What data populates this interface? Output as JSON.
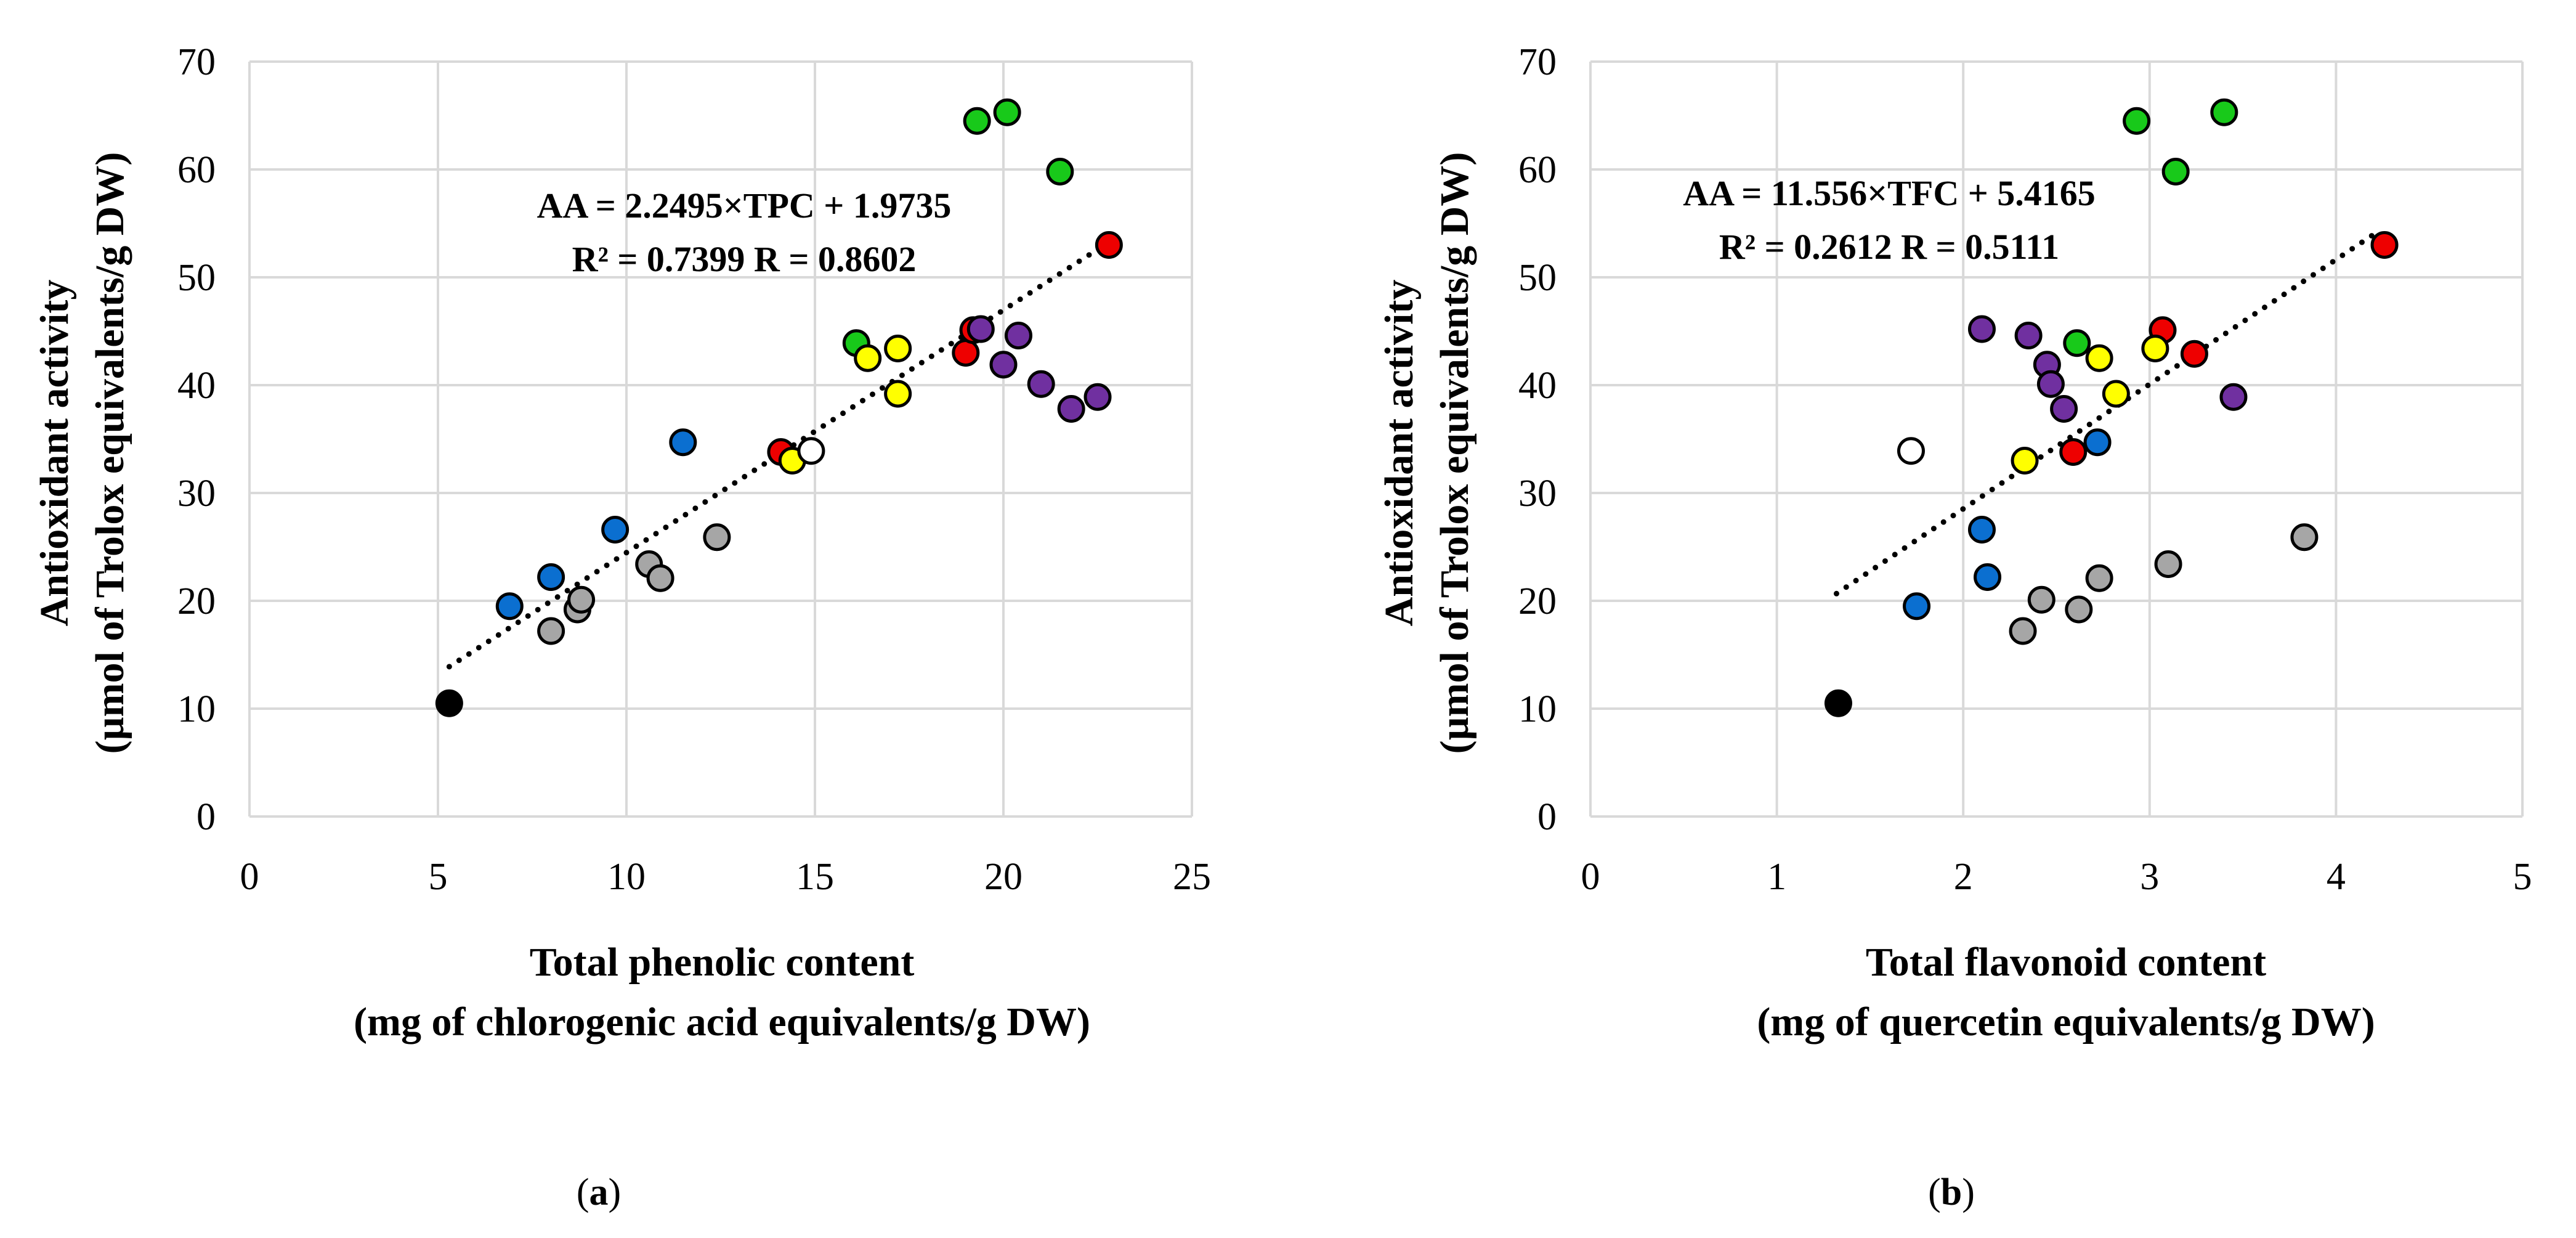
{
  "colors": {
    "green": "#18c91a",
    "red": "#ee0000",
    "yellow": "#ffff00",
    "purple": "#7030a0",
    "blue": "#0b6fd0",
    "gray": "#a6a6a6",
    "white": "#ffffff",
    "black": "#000000",
    "grid": "#d9d9d9"
  },
  "chart_data": [
    {
      "type": "scatter",
      "panel_label": {
        "open": "(",
        "letter": "a",
        "close": ")"
      },
      "ylabel": [
        "Antioxidant activity",
        "(µmol of Trolox equivalents/g DW)"
      ],
      "xlabel": [
        "Total phenolic content",
        "(mg of chlorogenic acid equivalents/g DW)"
      ],
      "xlim": [
        0,
        25
      ],
      "ylim": [
        0,
        70
      ],
      "xticks": [
        0,
        5,
        10,
        15,
        20,
        25
      ],
      "yticks": [
        0,
        10,
        20,
        30,
        40,
        50,
        60,
        70
      ],
      "grid": "vertical and horizontal",
      "equation": [
        "AA = 2.2495×TPC + 1.9735",
        "R² = 0.7399 R = 0.8602"
      ],
      "trendline": {
        "slope": 2.2495,
        "intercept": 1.9735,
        "x_range": [
          5.3,
          22.8
        ],
        "style": "dotted"
      },
      "series": [
        {
          "name": "green",
          "points": [
            [
              16.1,
              43.9
            ],
            [
              19.3,
              64.5
            ],
            [
              20.1,
              65.3
            ],
            [
              21.5,
              59.8
            ]
          ]
        },
        {
          "name": "red",
          "points": [
            [
              14.1,
              33.8
            ],
            [
              19.0,
              43.0
            ],
            [
              19.2,
              45.1
            ],
            [
              22.8,
              53.0
            ]
          ]
        },
        {
          "name": "yellow",
          "points": [
            [
              14.4,
              33.0
            ],
            [
              16.4,
              42.5
            ],
            [
              17.2,
              39.2
            ],
            [
              17.2,
              43.4
            ]
          ]
        },
        {
          "name": "purple",
          "points": [
            [
              19.4,
              45.2
            ],
            [
              20.0,
              41.9
            ],
            [
              20.4,
              44.6
            ],
            [
              21.0,
              40.1
            ],
            [
              21.8,
              37.8
            ],
            [
              22.5,
              38.9
            ]
          ]
        },
        {
          "name": "blue",
          "points": [
            [
              6.9,
              19.5
            ],
            [
              8.0,
              22.2
            ],
            [
              9.7,
              26.6
            ],
            [
              11.5,
              34.7
            ]
          ]
        },
        {
          "name": "gray",
          "points": [
            [
              8.0,
              17.2
            ],
            [
              8.7,
              19.2
            ],
            [
              8.8,
              20.1
            ],
            [
              10.6,
              23.4
            ],
            [
              10.9,
              22.1
            ],
            [
              12.4,
              25.9
            ]
          ]
        },
        {
          "name": "white",
          "points": [
            [
              14.9,
              33.9
            ]
          ]
        },
        {
          "name": "black",
          "points": [
            [
              5.3,
              10.5
            ]
          ]
        }
      ]
    },
    {
      "type": "scatter",
      "panel_label": {
        "open": "(",
        "letter": "b",
        "close": ")"
      },
      "ylabel": [
        "Antioxidant activity",
        "(µmol of Trolox equivalents/g DW)"
      ],
      "xlabel": [
        "Total flavonoid content",
        "(mg of quercetin equivalents/g DW)"
      ],
      "xlim": [
        0,
        5
      ],
      "ylim": [
        0,
        70
      ],
      "xticks": [
        0,
        1,
        2,
        3,
        4,
        5
      ],
      "yticks": [
        0,
        10,
        20,
        30,
        40,
        50,
        60,
        70
      ],
      "grid": "vertical and horizontal",
      "equation": [
        "AA = 11.556×TFC + 5.4165",
        "R² = 0.2612 R = 0.5111"
      ],
      "trendline": {
        "slope": 11.556,
        "intercept": 5.4165,
        "x_range": [
          1.32,
          4.22
        ],
        "style": "dotted"
      },
      "series": [
        {
          "name": "green",
          "points": [
            [
              2.61,
              43.9
            ],
            [
              2.93,
              64.5
            ],
            [
              3.14,
              59.8
            ],
            [
              3.4,
              65.3
            ]
          ]
        },
        {
          "name": "red",
          "points": [
            [
              2.59,
              33.8
            ],
            [
              3.07,
              45.1
            ],
            [
              3.24,
              42.9
            ],
            [
              4.26,
              53.0
            ]
          ]
        },
        {
          "name": "yellow",
          "points": [
            [
              2.33,
              33.0
            ],
            [
              2.73,
              42.5
            ],
            [
              2.82,
              39.2
            ],
            [
              3.03,
              43.4
            ]
          ]
        },
        {
          "name": "purple",
          "points": [
            [
              2.1,
              45.2
            ],
            [
              2.35,
              44.6
            ],
            [
              2.45,
              41.9
            ],
            [
              2.47,
              40.1
            ],
            [
              2.54,
              37.8
            ],
            [
              3.45,
              38.9
            ]
          ]
        },
        {
          "name": "blue",
          "points": [
            [
              1.75,
              19.5
            ],
            [
              2.1,
              26.6
            ],
            [
              2.13,
              22.2
            ],
            [
              2.72,
              34.7
            ]
          ]
        },
        {
          "name": "gray",
          "points": [
            [
              2.32,
              17.2
            ],
            [
              2.42,
              20.1
            ],
            [
              2.62,
              19.2
            ],
            [
              2.73,
              22.1
            ],
            [
              3.1,
              23.4
            ],
            [
              3.83,
              25.9
            ]
          ]
        },
        {
          "name": "white",
          "points": [
            [
              1.72,
              33.9
            ]
          ]
        },
        {
          "name": "black",
          "points": [
            [
              1.33,
              10.5
            ]
          ]
        }
      ]
    }
  ]
}
